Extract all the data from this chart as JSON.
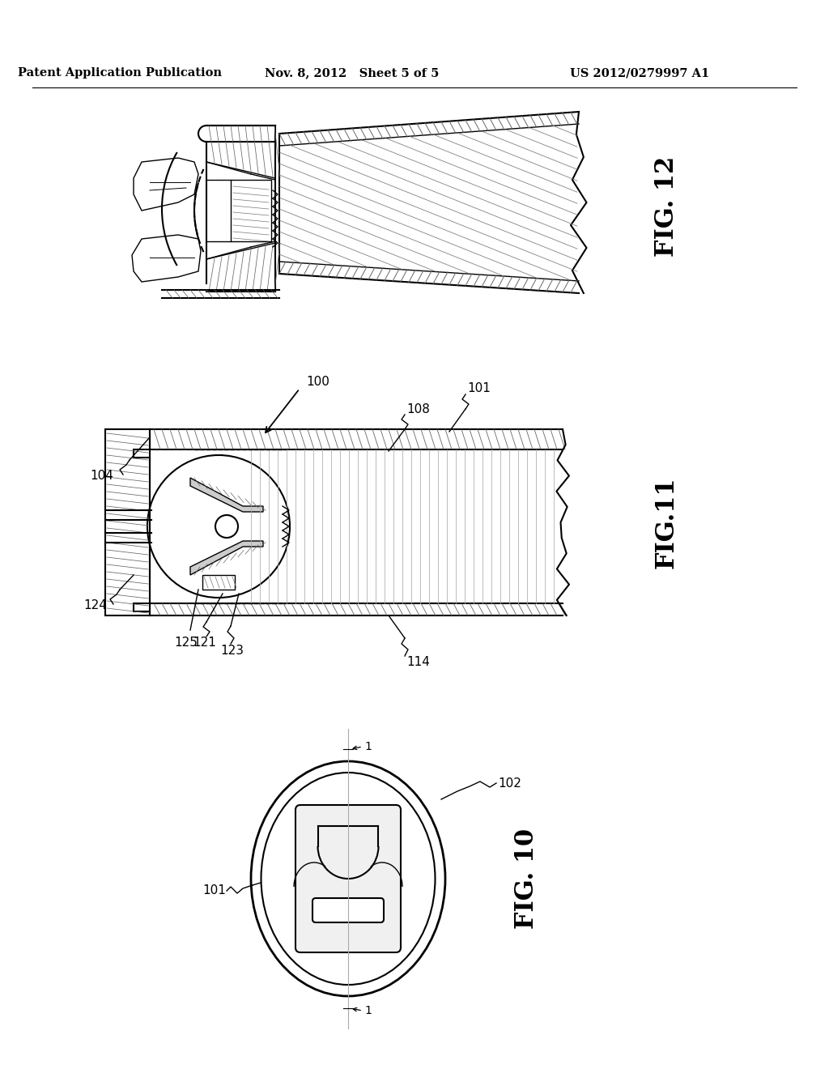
{
  "header_left": "Patent Application Publication",
  "header_center": "Nov. 8, 2012   Sheet 5 of 5",
  "header_right": "US 2012/0279997 A1",
  "fig10_label": "FIG. 10",
  "fig11_label": "FIG.11",
  "fig12_label": "FIG. 12",
  "background_color": "#ffffff",
  "line_color": "#000000",
  "fig10_ref_101": "101",
  "fig10_ref_102": "102",
  "fig10_ref_1": "1",
  "fig11_ref_100": "100",
  "fig11_ref_101": "101",
  "fig11_ref_104": "104",
  "fig11_ref_108": "108",
  "fig11_ref_114": "114",
  "fig11_ref_121": "121",
  "fig11_ref_123": "123",
  "fig11_ref_124": "124",
  "fig11_ref_125": "125"
}
